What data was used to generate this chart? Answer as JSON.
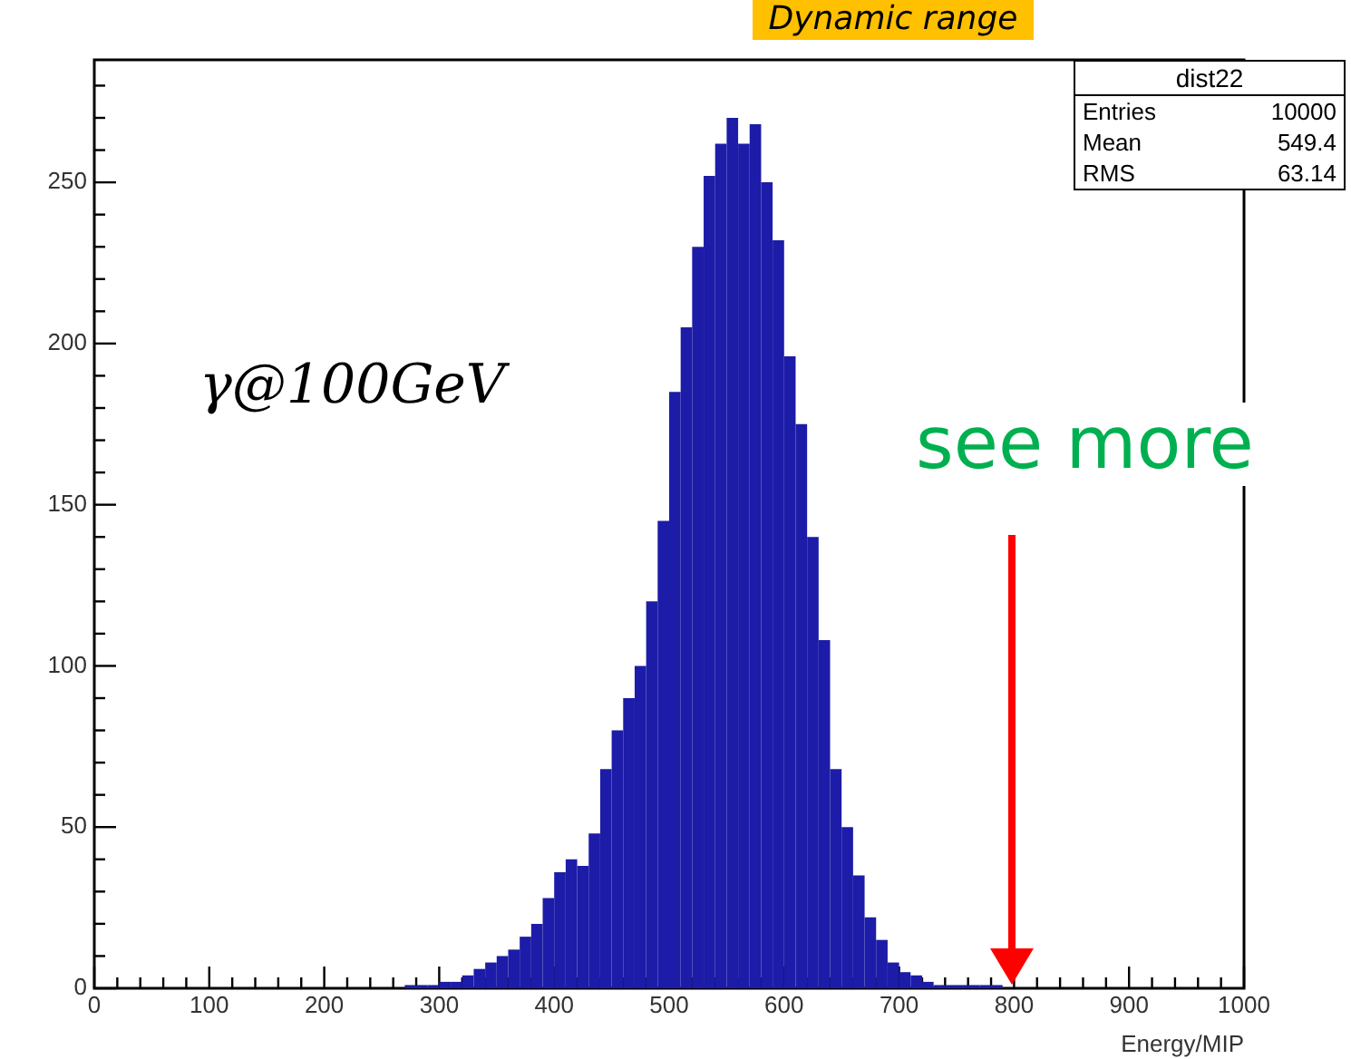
{
  "chart_data": {
    "type": "histogram",
    "title": "Dynamic range",
    "xlabel": "Energy/MIP",
    "color": "#1c1ca8",
    "bins": [
      270,
      280,
      290,
      300,
      310,
      320,
      330,
      340,
      350,
      360,
      370,
      380,
      390,
      400,
      410,
      420,
      430,
      440,
      450,
      460,
      470,
      480,
      490,
      500,
      510,
      520,
      530,
      540,
      550,
      560,
      570,
      580,
      590,
      600,
      610,
      620,
      630,
      640,
      650,
      660,
      670,
      680,
      690,
      700,
      710,
      720,
      730,
      740,
      750,
      760,
      770,
      780,
      790
    ],
    "values": [
      1,
      1,
      1,
      2,
      2,
      4,
      6,
      8,
      10,
      12,
      16,
      20,
      28,
      36,
      40,
      38,
      48,
      68,
      80,
      90,
      100,
      120,
      145,
      185,
      205,
      230,
      252,
      262,
      270,
      262,
      268,
      250,
      232,
      196,
      175,
      140,
      108,
      68,
      50,
      35,
      22,
      15,
      8,
      5,
      4,
      2,
      1,
      1,
      1,
      1,
      1,
      1
    ],
    "xlim": [
      0,
      1000
    ],
    "ylim": [
      0,
      288
    ],
    "xticks": [
      0,
      {
        "value": 20,
        "label": null
      },
      {
        "value": 40,
        "label": null
      },
      {
        "value": 60,
        "label": null
      },
      {
        "value": 80,
        "label": null
      },
      100,
      {
        "value": 120,
        "label": null
      },
      {
        "value": 140,
        "label": null
      },
      {
        "value": 160,
        "label": null
      },
      {
        "value": 180,
        "label": null
      },
      200,
      {
        "value": 220,
        "label": null
      },
      {
        "value": 240,
        "label": null
      },
      {
        "value": 260,
        "label": null
      },
      {
        "value": 280,
        "label": null
      },
      300,
      {
        "value": 320,
        "label": null
      },
      {
        "value": 340,
        "label": null
      },
      {
        "value": 360,
        "label": null
      },
      {
        "value": 380,
        "label": null
      },
      400,
      {
        "value": 420,
        "label": null
      },
      {
        "value": 440,
        "label": null
      },
      {
        "value": 460,
        "label": null
      },
      {
        "value": 480,
        "label": null
      },
      500,
      {
        "value": 520,
        "label": null
      },
      {
        "value": 540,
        "label": null
      },
      {
        "value": 560,
        "label": null
      },
      {
        "value": 580,
        "label": null
      },
      600,
      {
        "value": 620,
        "label": null
      },
      {
        "value": 640,
        "label": null
      },
      {
        "value": 660,
        "label": null
      },
      {
        "value": 680,
        "label": null
      },
      700,
      {
        "value": 720,
        "label": null
      },
      {
        "value": 740,
        "label": null
      },
      {
        "value": 760,
        "label": null
      },
      {
        "value": 780,
        "label": null
      },
      800,
      {
        "value": 820,
        "label": null
      },
      {
        "value": 840,
        "label": null
      },
      {
        "value": 860,
        "label": null
      },
      {
        "value": 880,
        "label": null
      },
      900,
      {
        "value": 920,
        "label": null
      },
      {
        "value": 940,
        "label": null
      },
      {
        "value": 960,
        "label": null
      },
      {
        "value": 980,
        "label": null
      },
      1000
    ],
    "yticks": [
      0,
      {
        "value": 10,
        "label": null
      },
      {
        "value": 20,
        "label": null
      },
      {
        "value": 30,
        "label": null
      },
      {
        "value": 40,
        "label": null
      },
      50,
      {
        "value": 60,
        "label": null
      },
      {
        "value": 70,
        "label": null
      },
      {
        "value": 80,
        "label": null
      },
      {
        "value": 90,
        "label": null
      },
      100,
      {
        "value": 110,
        "label": null
      },
      {
        "value": 120,
        "label": null
      },
      {
        "value": 130,
        "label": null
      },
      {
        "value": 140,
        "label": null
      },
      150,
      {
        "value": 160,
        "label": null
      },
      {
        "value": 170,
        "label": null
      },
      {
        "value": 180,
        "label": null
      },
      {
        "value": 190,
        "label": null
      },
      200,
      {
        "value": 210,
        "label": null
      },
      {
        "value": 220,
        "label": null
      },
      {
        "value": 230,
        "label": null
      },
      {
        "value": 240,
        "label": null
      },
      250,
      {
        "value": 260,
        "label": null
      },
      {
        "value": 270,
        "label": null
      },
      {
        "value": 280,
        "label": null
      }
    ],
    "grid": false,
    "legend": false,
    "annotations": [
      "dist22",
      "Entries",
      "10000",
      "Mean",
      "549.4",
      "RMS",
      "63.14",
      "γ@100GeV",
      "see more"
    ]
  }
}
